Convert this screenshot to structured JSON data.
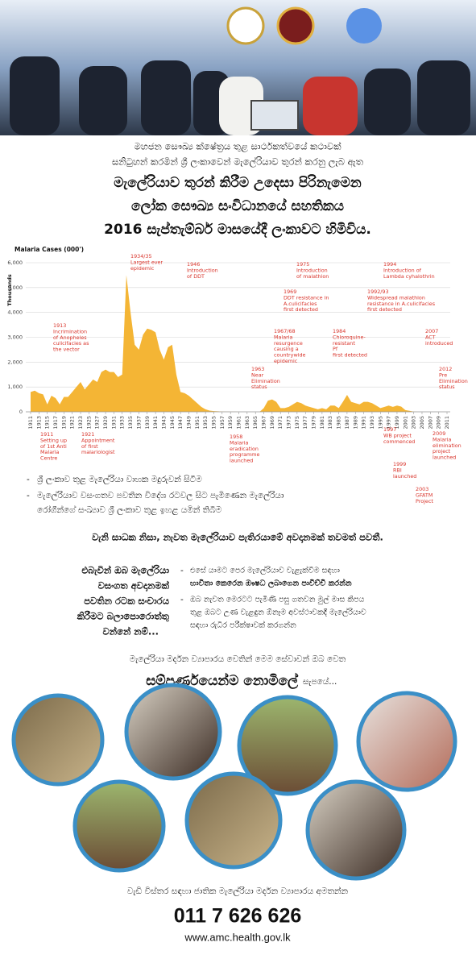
{
  "header": {
    "lines": [
      "මහජන සෞඛ්‍ය ක්ෂේත්‍රය තුළ සාර්ථකත්වයේ කථාවක්",
      "සනිටුහන් කරමින් ශ්‍රී ලංකාවෙන් මැලේරියාව තුරන් කරනු ලැබ ඇත"
    ],
    "headline": [
      "මැලේරියාව තුරන් කිරීම උදෙසා පිරිනැමෙන",
      "ලෝක සෞඛ්‍ය සංවිධානයේ සහතිකය",
      "2016 සැප්තැම්බර් මාසයේදී ලංකාවට හිමිවිය."
    ]
  },
  "chart_data": {
    "type": "area",
    "title": "Malaria Cases (000')",
    "y_label": "Thousands",
    "color": "#f4b535",
    "grid": true,
    "x": [
      1911,
      1912,
      1913,
      1914,
      1915,
      1916,
      1917,
      1918,
      1919,
      1920,
      1921,
      1922,
      1923,
      1924,
      1925,
      1926,
      1927,
      1928,
      1929,
      1930,
      1931,
      1932,
      1933,
      1934,
      1935,
      1936,
      1937,
      1938,
      1939,
      1940,
      1941,
      1942,
      1943,
      1944,
      1945,
      1946,
      1947,
      1948,
      1949,
      1950,
      1951,
      1952,
      1953,
      1954,
      1955,
      1956,
      1957,
      1958,
      1959,
      1960,
      1961,
      1962,
      1963,
      1964,
      1965,
      1966,
      1967,
      1968,
      1969,
      1970,
      1971,
      1972,
      1973,
      1974,
      1975,
      1976,
      1977,
      1978,
      1979,
      1980,
      1981,
      1982,
      1983,
      1984,
      1985,
      1986,
      1987,
      1988,
      1989,
      1990,
      1991,
      1992,
      1993,
      1994,
      1995,
      1996,
      1997,
      1998,
      1999,
      2000,
      2001,
      2002,
      2003,
      2004,
      2005,
      2006,
      2007,
      2008,
      2009,
      2010,
      2011
    ],
    "values": [
      800,
      850,
      750,
      700,
      300,
      650,
      550,
      300,
      600,
      600,
      800,
      1000,
      1200,
      900,
      1100,
      1300,
      1200,
      1600,
      1700,
      1600,
      1600,
      1400,
      1500,
      5500,
      4000,
      2700,
      2500,
      3100,
      3350,
      3300,
      3200,
      2500,
      2100,
      2600,
      2700,
      1500,
      800,
      750,
      650,
      500,
      350,
      200,
      100,
      50,
      30,
      20,
      10,
      5,
      5,
      5,
      0,
      0,
      0,
      0,
      0,
      0,
      150,
      450,
      500,
      400,
      150,
      150,
      200,
      300,
      400,
      350,
      250,
      200,
      150,
      100,
      150,
      100,
      250,
      250,
      150,
      400,
      680,
      400,
      350,
      300,
      400,
      400,
      350,
      250,
      150,
      200,
      250,
      200,
      250,
      210,
      70,
      40,
      10,
      0,
      0,
      0,
      0,
      0,
      0,
      0,
      0
    ],
    "xlim": [
      1911,
      2011
    ],
    "xticks": [
      1911,
      1913,
      1915,
      1917,
      1919,
      1921,
      1923,
      1925,
      1927,
      1929,
      1931,
      1933,
      1935,
      1937,
      1939,
      1941,
      1943,
      1945,
      1947,
      1949,
      1951,
      1953,
      1955,
      1957,
      1959,
      1961,
      1963,
      1965,
      1967,
      1969,
      1971,
      1973,
      1975,
      1977,
      1979,
      1981,
      1983,
      1985,
      1987,
      1989,
      1991,
      1993,
      1995,
      1997,
      1999,
      2001,
      2003,
      2005,
      2007,
      2009,
      2011
    ],
    "ylim": [
      0,
      6000
    ],
    "yticks": [
      0,
      {
        "value": 1000,
        "label": "1,000"
      },
      {
        "value": 2000,
        "label": "2,000"
      },
      {
        "value": 3000,
        "label": "3,000"
      },
      {
        "value": 4000,
        "label": "4,000"
      },
      {
        "value": 5000,
        "label": "5,000"
      },
      {
        "value": 6000,
        "label": "6,000"
      }
    ],
    "annotations": [
      {
        "lines": [
          "1934/35",
          "Largest ever",
          "epidemic"
        ]
      },
      {
        "lines": [
          "1946",
          "Introduction",
          "of DDT"
        ]
      },
      {
        "lines": [
          "1975",
          "Introduction",
          "of malathion"
        ]
      },
      {
        "lines": [
          "1994",
          "Introduction of",
          "Lambda cyhalothrin"
        ]
      },
      {
        "lines": [
          "1969",
          "DDT resistance in",
          "A.culicifacies",
          "first detected"
        ]
      },
      {
        "lines": [
          "1992/93",
          "Widespread malathion",
          "resistance in A.culicifacies",
          "first detected"
        ]
      },
      {
        "lines": [
          "1913",
          "Incrimination",
          "of Anopheles",
          "culicifacies as",
          "the vector"
        ]
      },
      {
        "lines": [
          "1967/68",
          "Malaria",
          "resurgence",
          "causing a",
          "countrywide",
          "epidemic"
        ]
      },
      {
        "lines": [
          "1984",
          "Chloroquine-",
          "resistant",
          "Pf",
          "first detected"
        ]
      },
      {
        "lines": [
          "2007",
          "ACT",
          "introduced"
        ]
      },
      {
        "lines": [
          "1963",
          "Near",
          "Elimination",
          "status"
        ]
      },
      {
        "lines": [
          "2012",
          "Pre",
          "Elimination",
          "status"
        ]
      },
      {
        "lines": [
          "1911",
          "Setting up",
          "of 1st Anti",
          "Malaria",
          "Centre"
        ]
      },
      {
        "lines": [
          "1921",
          "Appointment",
          "of first",
          "malariologist"
        ]
      },
      {
        "lines": [
          "1958",
          "Malaria",
          "eradication",
          "programme",
          "launched"
        ]
      },
      {
        "lines": [
          "1997",
          "WB project",
          "commenced"
        ]
      },
      {
        "lines": [
          "1999",
          "RBI",
          "launched"
        ]
      },
      {
        "lines": [
          "2003",
          "GFATM",
          "Project"
        ]
      },
      {
        "lines": [
          "2009",
          "Malaria",
          "elimination",
          "project",
          "launched"
        ]
      }
    ]
  },
  "risk_factors": {
    "bullets": [
      [
        "ශ්‍රී ලංකාව තුළ මැලේරියා වාහක මදුරුවන් සිටීම"
      ],
      [
        "මැලේරියාව වසංගතව පවතින විදේශ රටවල සිට පැමිණෙන මැලේරියා",
        "රෝගීන්ගේ සංඛ්‍යාව ශ්‍රී ලංකාව තුළ ඉහළ යමින් තිබීම"
      ]
    ],
    "conclusion": "වැනි සාධක නිසා, නැවත මැලේරියාව පැතිරයාමේ අවදානමක් තවමත් පවතී."
  },
  "travel": {
    "question": [
      "එබැවින් ඔබ මැලේරියා",
      "වසංගත අවදානමක්",
      "පවතින රටක සංචාරය",
      "කිරීමට බලාපොරොත්තු",
      "වන්නේ නම්..."
    ],
    "advice": [
      [
        "එසේ යාමට පෙර මැලේරියාව වැළැක්වීම සඳහා",
        "භාවිතා කෙරෙන ඖෂධ ලබාගෙන පාවිච්චි කරන්න"
      ],
      [
        "ඔබ නැවත මෙරටට පැමිණි පසු ගතවන මුල් මාස කිපය",
        "තුළ ඔබට උණ වැළඳුන ඕනෑම අවස්ථාවකදී මැලේරියාව",
        "සඳහා රුධිර පරීක්ෂාවක් කරගන්න"
      ]
    ]
  },
  "service": {
    "line": "මැලේරියා මර්දන ව්‍යාපාරය වෙතින් මෙම සේවාවන් ඔබ වෙත",
    "emphasis": "සම්පූර්ණයෙන්ම නොමිලේ",
    "suffix": "සැපයේ..."
  },
  "contact": {
    "line": "වැඩි විස්තර සඳහා ජාතික මැලේරියා මර්දන ව්‍යාපාරය අමතන්න",
    "phone": "011 7 626 626",
    "website": "www.amc.health.gov.lk"
  }
}
